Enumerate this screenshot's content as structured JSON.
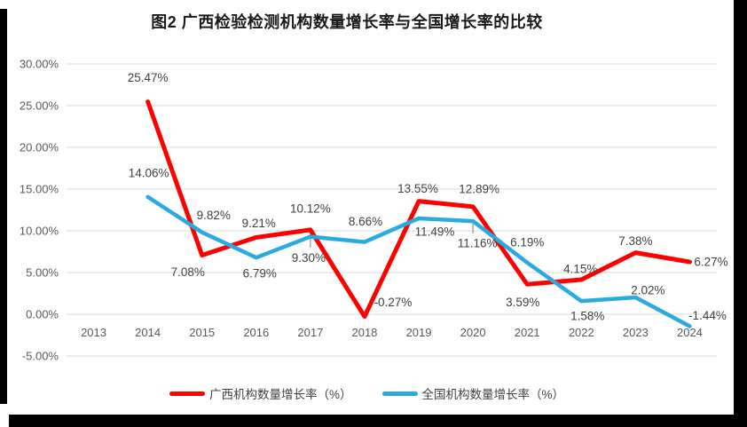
{
  "page": {
    "background_color": "#FFFFFF",
    "edge_color": "#000000"
  },
  "chart_data": {
    "type": "line",
    "title": "图2 广西检验检测机构数量增长率与全国增长率的比较",
    "categories": [
      "2013",
      "2014",
      "2015",
      "2016",
      "2017",
      "2018",
      "2019",
      "2020",
      "2021",
      "2022",
      "2023",
      "2024"
    ],
    "xlabel": "",
    "ylabel": "",
    "ylim": [
      -5,
      30
    ],
    "y_tick_values": [
      30,
      25,
      20,
      15,
      10,
      5,
      0,
      -5
    ],
    "y_ticks": [
      "30.00%",
      "25.00%",
      "20.00%",
      "15.00%",
      "10.00%",
      "5.00%",
      "0.00%",
      "-5.00%"
    ],
    "grid": true,
    "legend_position": "bottom",
    "gridline_color": "#D9D9D9",
    "axis_text_color": "#595959",
    "label_text_color": "#404040",
    "leader_line_color": "#A6A6A6",
    "series": [
      {
        "id": "guangxi",
        "name": "广西机构数量增长率（%）",
        "color": "#FF0000",
        "width": 5,
        "values": [
          null,
          25.47,
          7.08,
          9.21,
          10.12,
          -0.27,
          13.55,
          12.89,
          3.59,
          4.15,
          7.38,
          6.27
        ],
        "labels": [
          "",
          "25.47%",
          "7.08%",
          "9.21%",
          "10.12%",
          "-0.27%",
          "13.55%",
          "12.89%",
          "3.59%",
          "4.15%",
          "7.38%",
          "6.27%"
        ],
        "label_offsets": [
          null,
          [
            0,
            -27
          ],
          [
            -16,
            19
          ],
          [
            3,
            -16
          ],
          [
            0,
            -24
          ],
          [
            32,
            -16
          ],
          [
            -1,
            -14
          ],
          [
            7,
            -20
          ],
          [
            -5,
            20
          ],
          [
            -1,
            -12
          ],
          [
            0,
            -13
          ],
          [
            24,
            0
          ]
        ]
      },
      {
        "id": "national",
        "name": "全国机构数量增长率（%）",
        "color": "#29ABE2",
        "width": 4.5,
        "values": [
          null,
          14.06,
          9.82,
          6.79,
          9.3,
          8.66,
          11.49,
          11.16,
          6.19,
          1.58,
          2.02,
          -1.44
        ],
        "labels": [
          "",
          "14.06%",
          "9.82%",
          "6.79%",
          "9.30%",
          "8.66%",
          "11.49%",
          "11.16%",
          "6.19%",
          "1.58%",
          "2.02%",
          "-1.44%"
        ],
        "label_offsets": [
          null,
          [
            1,
            -27
          ],
          [
            13,
            -19
          ],
          [
            4,
            18
          ],
          [
            -2,
            24
          ],
          [
            1,
            -23
          ],
          [
            18,
            15
          ],
          [
            5,
            25
          ],
          [
            0,
            -23
          ],
          [
            7,
            17
          ],
          [
            14,
            -8
          ],
          [
            20,
            -12
          ]
        ]
      }
    ],
    "leader_lines": [
      {
        "category_index": 4,
        "from_value": 9.7,
        "to_value": 8.0
      },
      {
        "category_index": 7,
        "from_value": 11.3,
        "to_value": 9.7
      }
    ]
  }
}
